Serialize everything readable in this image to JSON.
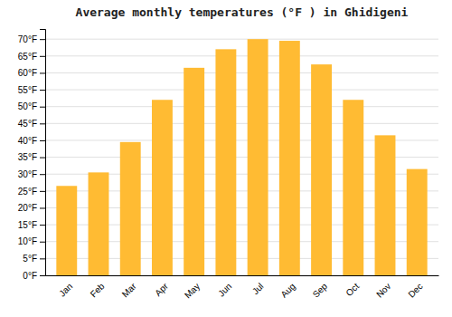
{
  "chart_data": {
    "type": "bar",
    "title": "Average monthly temperatures (°F ) in Ghidigeni",
    "categories": [
      "Jan",
      "Feb",
      "Mar",
      "Apr",
      "May",
      "Jun",
      "Jul",
      "Aug",
      "Sep",
      "Oct",
      "Nov",
      "Dec"
    ],
    "values": [
      26.5,
      30.5,
      39.5,
      52,
      61.5,
      67,
      70,
      69.5,
      62.5,
      52,
      41.5,
      31.5
    ],
    "color": "#FFBB33",
    "ylim": [
      0,
      73
    ],
    "yticks": [
      {
        "value": 0,
        "label": "0°F"
      },
      {
        "value": 5,
        "label": "5°F"
      },
      {
        "value": 10,
        "label": "10°F"
      },
      {
        "value": 15,
        "label": "15°F"
      },
      {
        "value": 20,
        "label": "20°F"
      },
      {
        "value": 25,
        "label": "25°F"
      },
      {
        "value": 30,
        "label": "30°F"
      },
      {
        "value": 35,
        "label": "35°F"
      },
      {
        "value": 40,
        "label": "40°F"
      },
      {
        "value": 45,
        "label": "45°F"
      },
      {
        "value": 50,
        "label": "50°F"
      },
      {
        "value": 55,
        "label": "55°F"
      },
      {
        "value": 60,
        "label": "60°F"
      },
      {
        "value": 65,
        "label": "65°F"
      },
      {
        "value": 70,
        "label": "70°F"
      }
    ],
    "grid": true
  }
}
